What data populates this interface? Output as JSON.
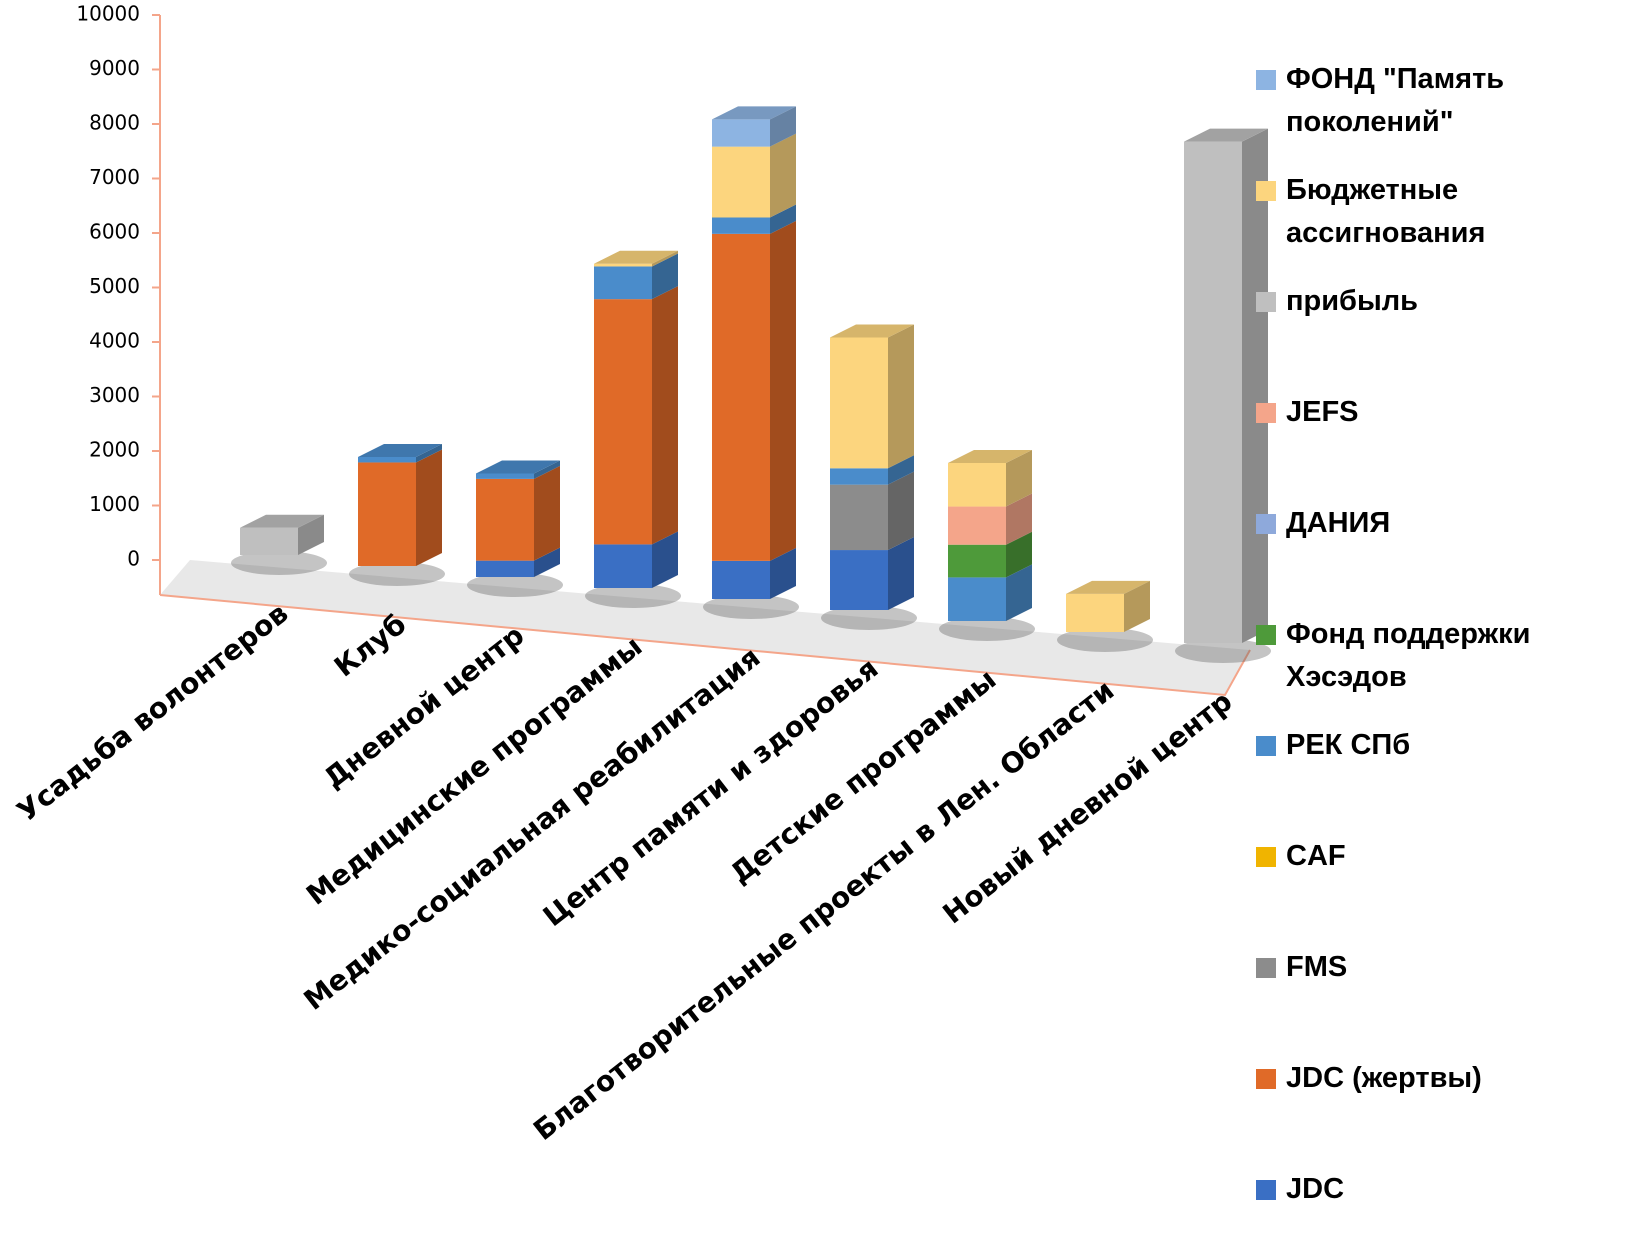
{
  "chart_data": {
    "type": "bar3d_stacked",
    "categories": [
      "Усадьба волонтеров",
      "Клуб",
      "Дневной центр",
      "Медицинские программы",
      "Медико-социальная реабилитация",
      "Центр памяти и здоровья",
      "Детские программы",
      "Благотворительные проекты в Лен. Области",
      "Новый дневной центр"
    ],
    "series": [
      {
        "name": "ФОНД \"Память поколений\"",
        "color": "#8db4e2",
        "values": [
          0,
          0,
          0,
          0,
          500,
          0,
          0,
          0,
          0
        ]
      },
      {
        "name": "Бюджетные ассигнования",
        "color": "#fcd57e",
        "values": [
          0,
          0,
          0,
          50,
          1300,
          2400,
          800,
          700,
          0
        ]
      },
      {
        "name": "прибыль",
        "color": "#bfbfbf",
        "values": [
          500,
          0,
          0,
          0,
          0,
          0,
          0,
          0,
          9200
        ]
      },
      {
        "name": "JEFS",
        "color": "#f4a58a",
        "values": [
          0,
          0,
          0,
          0,
          0,
          0,
          700,
          0,
          0
        ]
      },
      {
        "name": "ДАНИЯ",
        "color": "#8ea9db",
        "values": [
          0,
          0,
          0,
          0,
          0,
          0,
          0,
          0,
          0
        ]
      },
      {
        "name": "Фонд поддержки Хэсэдов",
        "color": "#4e9a3a",
        "values": [
          0,
          0,
          0,
          0,
          0,
          0,
          600,
          0,
          0
        ]
      },
      {
        "name": "РЕК СПб",
        "color": "#4a8ccb",
        "values": [
          0,
          100,
          100,
          600,
          300,
          300,
          800,
          0,
          0
        ]
      },
      {
        "name": "CAF",
        "color": "#f0b400",
        "values": [
          0,
          0,
          0,
          0,
          0,
          0,
          0,
          0,
          0
        ]
      },
      {
        "name": "FMS",
        "color": "#8c8c8c",
        "values": [
          0,
          0,
          0,
          0,
          0,
          1200,
          0,
          0,
          0
        ]
      },
      {
        "name": "JDC (жертвы)",
        "color": "#e06a28",
        "values": [
          0,
          1900,
          1500,
          4500,
          6000,
          0,
          0,
          0,
          0
        ]
      },
      {
        "name": "JDC",
        "color": "#3a6fc4",
        "values": [
          0,
          0,
          300,
          800,
          700,
          1100,
          0,
          0,
          0
        ]
      }
    ],
    "ylim": [
      0,
      10000
    ],
    "yticks": [
      0,
      1000,
      2000,
      3000,
      4000,
      5000,
      6000,
      7000,
      8000,
      9000,
      10000
    ],
    "legend": "right"
  }
}
